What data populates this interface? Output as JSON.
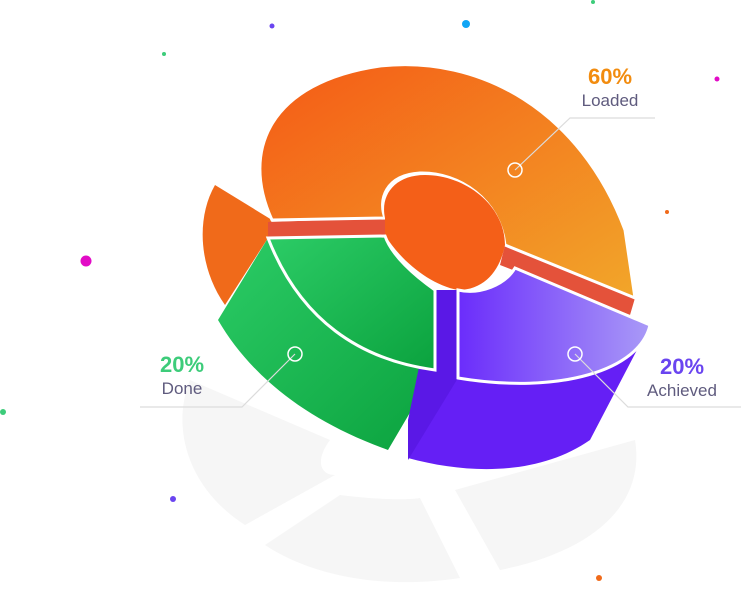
{
  "chart_data": {
    "type": "pie",
    "style": "3d-donut",
    "slices": [
      {
        "label": "Loaded",
        "value": 60,
        "value_text": "60%",
        "color": "#f47a1f"
      },
      {
        "label": "Done",
        "value": 20,
        "value_text": "20%",
        "color": "#27c45f"
      },
      {
        "label": "Achieved",
        "value": 20,
        "value_text": "20%",
        "color": "#6a2bff"
      }
    ]
  },
  "colors": {
    "loaded_text": "#f28c0f",
    "done_text": "#3dcc7a",
    "achieved_text": "#6a45f0",
    "label_text": "#5f5b7e"
  }
}
